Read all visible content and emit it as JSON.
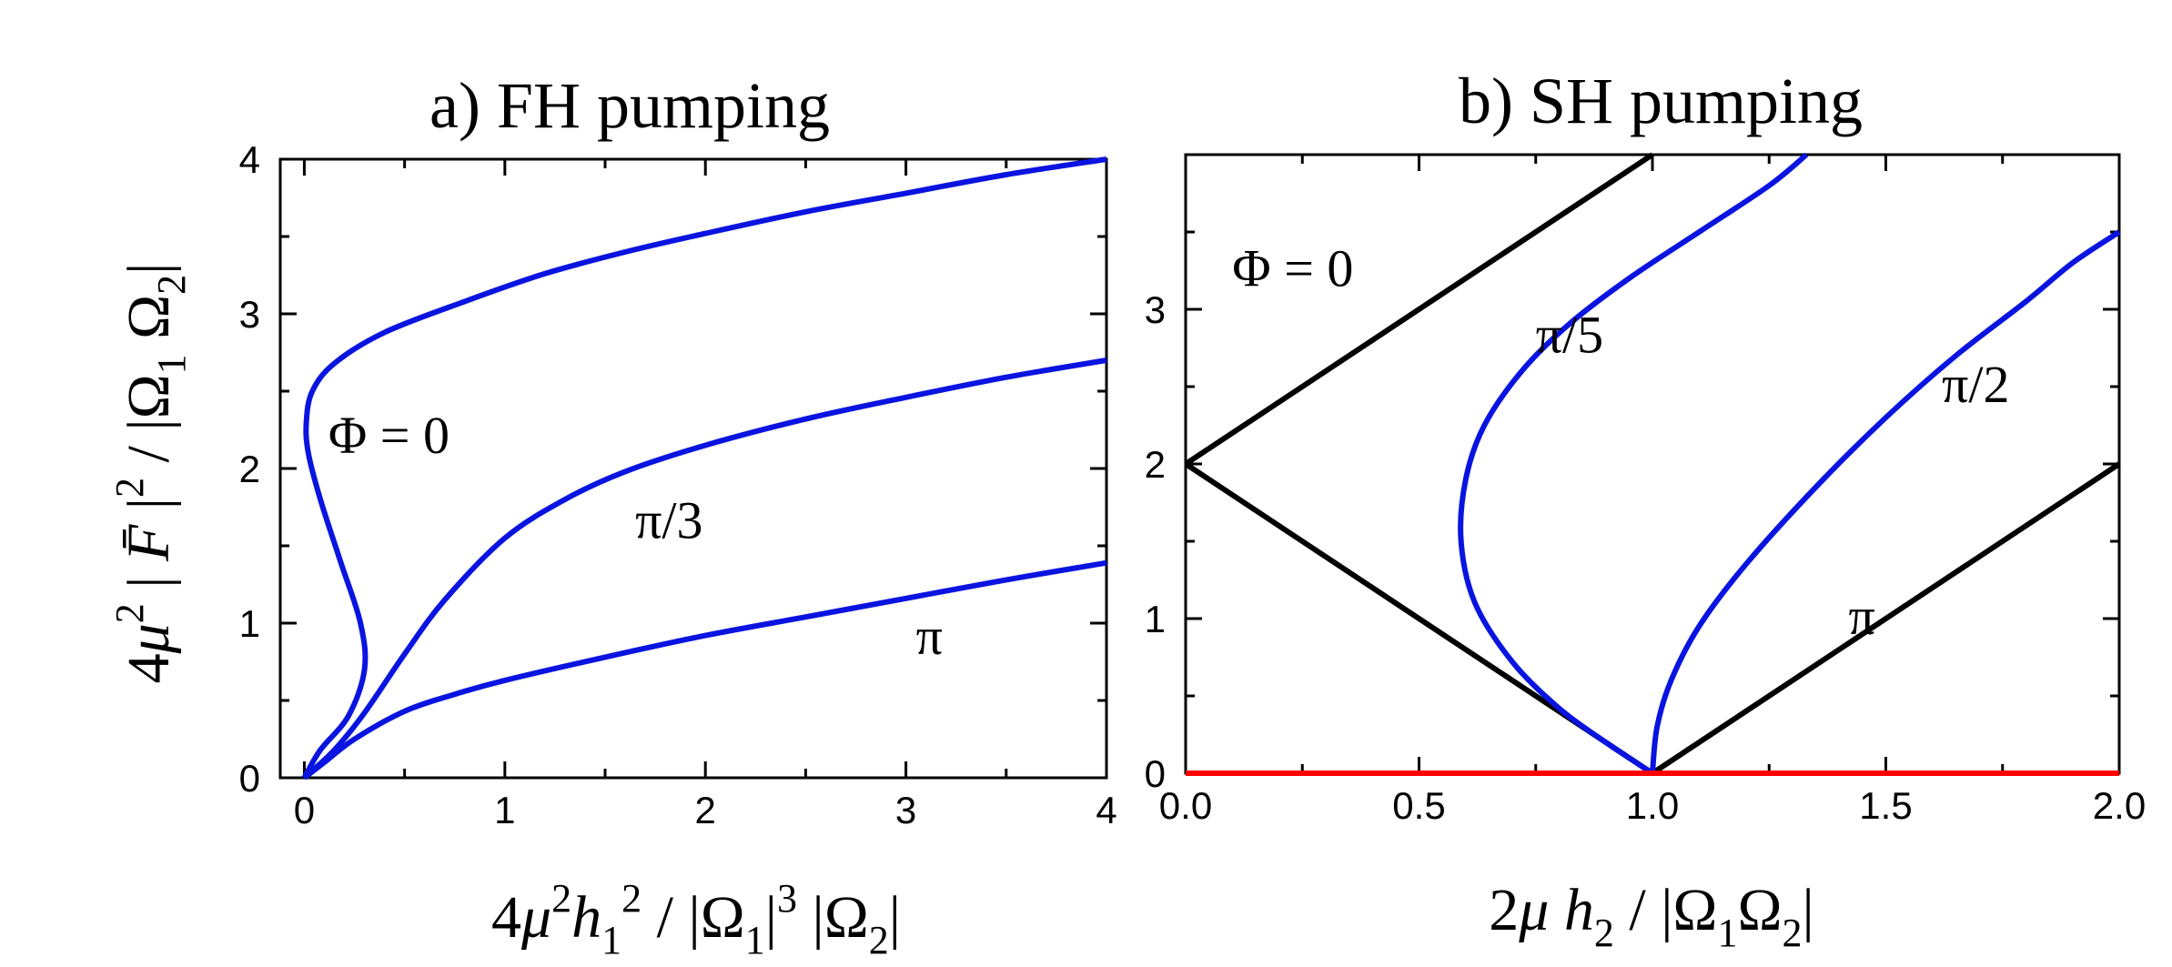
{
  "chart_data": [
    {
      "type": "line",
      "title": "a)  FH pumping",
      "xlabel": "4μ²h₁² / |Ω₁|³ |Ω₂|",
      "ylabel": "4μ² |F̄|² / |Ω₁ Ω₂|",
      "xlim": [
        -0.12,
        4
      ],
      "ylim": [
        0,
        4
      ],
      "xticks": [
        0,
        1,
        2,
        3,
        4
      ],
      "yticks": [
        0,
        1,
        2,
        3,
        4
      ],
      "grid": false,
      "series": [
        {
          "name": "Φ = 0",
          "color": "#0a14e0",
          "x": [
            0,
            0.08,
            0.22,
            0.3,
            0.28,
            0.18,
            0.08,
            0.02,
            0.01,
            0.04,
            0.15,
            0.4,
            0.8,
            1.2,
            1.6,
            2.0,
            2.5,
            3.0,
            3.5,
            4.0
          ],
          "y": [
            0,
            0.18,
            0.4,
            0.7,
            1.0,
            1.4,
            1.8,
            2.1,
            2.3,
            2.5,
            2.68,
            2.88,
            3.08,
            3.26,
            3.4,
            3.52,
            3.66,
            3.78,
            3.9,
            4.0
          ]
        },
        {
          "name": "π/3",
          "color": "#0a14e0",
          "x": [
            0,
            0.15,
            0.3,
            0.5,
            0.7,
            1.0,
            1.3,
            1.6,
            2.0,
            2.5,
            3.0,
            3.5,
            4.0
          ],
          "y": [
            0,
            0.18,
            0.42,
            0.8,
            1.15,
            1.55,
            1.8,
            1.98,
            2.15,
            2.32,
            2.46,
            2.59,
            2.7
          ]
        },
        {
          "name": "π",
          "color": "#0a14e0",
          "x": [
            0,
            0.1,
            0.25,
            0.5,
            0.75,
            1.0,
            1.5,
            2.0,
            2.5,
            3.0,
            3.5,
            4.0
          ],
          "y": [
            0,
            0.1,
            0.25,
            0.43,
            0.54,
            0.63,
            0.78,
            0.92,
            1.04,
            1.16,
            1.28,
            1.39
          ]
        }
      ],
      "annotations": [
        {
          "text": "Φ = 0",
          "x": 0.12,
          "y": 2.1
        },
        {
          "text": "π/3",
          "x": 1.65,
          "y": 1.55
        },
        {
          "text": "π",
          "x": 3.05,
          "y": 0.8
        }
      ]
    },
    {
      "type": "line",
      "title": "b)  SH pumping",
      "xlabel": "2μ h₂ / |Ω₁Ω₂|",
      "ylabel": "",
      "xlim": [
        0,
        2
      ],
      "ylim": [
        0,
        4
      ],
      "xticks": [
        0.0,
        0.5,
        1.0,
        1.5,
        2.0
      ],
      "xtick_labels": [
        "0.0",
        "0.5",
        "1.0",
        "1.5",
        "2.0"
      ],
      "yticks": [
        0,
        1,
        2,
        3
      ],
      "grid": false,
      "series": [
        {
          "name": "Φ = 0",
          "color": "#000000",
          "x": [
            0,
            1.0
          ],
          "y": [
            2,
            4
          ]
        },
        {
          "name": "",
          "color": "#000000",
          "x": [
            0,
            1.0
          ],
          "y": [
            2,
            0
          ]
        },
        {
          "name": "π",
          "color": "#000000",
          "x": [
            1.0,
            2.0
          ],
          "y": [
            0,
            2
          ]
        },
        {
          "name": "π/5",
          "color": "#0a14e0",
          "x": [
            1.0,
            0.9,
            0.8,
            0.7,
            0.62,
            0.59,
            0.6,
            0.64,
            0.72,
            0.82,
            0.95,
            1.1,
            1.25,
            1.33
          ],
          "y": [
            0,
            0.2,
            0.42,
            0.72,
            1.1,
            1.5,
            1.9,
            2.25,
            2.6,
            2.9,
            3.2,
            3.5,
            3.8,
            4.0
          ]
        },
        {
          "name": "π/2",
          "color": "#0a14e0",
          "x": [
            1.0,
            1.01,
            1.04,
            1.1,
            1.2,
            1.35,
            1.5,
            1.65,
            1.8,
            1.9,
            2.0
          ],
          "y": [
            0,
            0.3,
            0.6,
            0.95,
            1.35,
            1.85,
            2.3,
            2.7,
            3.05,
            3.3,
            3.5
          ]
        },
        {
          "name": "",
          "color": "#ff0000",
          "x": [
            0,
            2.0
          ],
          "y": [
            0,
            0
          ]
        }
      ],
      "annotations": [
        {
          "text": "Φ = 0",
          "x": 0.1,
          "y": 3.15
        },
        {
          "text": "π/5",
          "x": 0.75,
          "y": 2.72
        },
        {
          "text": "π/2",
          "x": 1.62,
          "y": 2.4
        },
        {
          "text": "π",
          "x": 1.42,
          "y": 0.9
        }
      ]
    }
  ]
}
